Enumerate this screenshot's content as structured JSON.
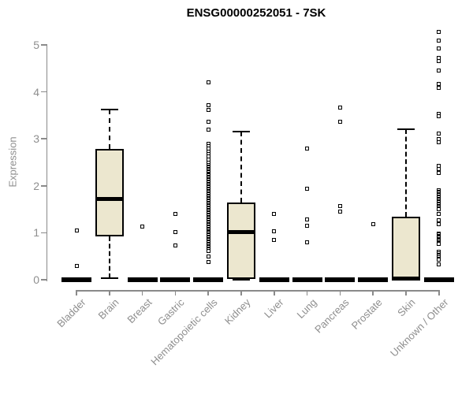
{
  "title": "ENSG00000252051 - 7SK",
  "chart_data": {
    "type": "boxplot",
    "title": "ENSG00000252051 - 7SK",
    "ylabel": "Expression",
    "xlabel": "",
    "ylim": [
      0,
      5.3
    ],
    "yticks": [
      0,
      1,
      2,
      3,
      4,
      5
    ],
    "grid": false,
    "legend": "none",
    "box_fill_color": "#ece7cf",
    "box_line_color": "#000000",
    "axis_color": "#8a8a8a",
    "label_color": "#8e8e8e",
    "categories": [
      "Bladder",
      "Brain",
      "Breast",
      "Gastric",
      "Hematopoietic cells",
      "Kidney",
      "Liver",
      "Lung",
      "Pancreas",
      "Prostate",
      "Skin",
      "Unknown / Other"
    ],
    "boxes": [
      {
        "category": "Bladder",
        "low": 0,
        "q1": 0,
        "median": 0,
        "q3": 0,
        "high": 0,
        "outliers": [
          1.05,
          0.29
        ]
      },
      {
        "category": "Brain",
        "low": 0.03,
        "q1": 0.93,
        "median": 1.72,
        "q3": 2.79,
        "high": 3.62,
        "outliers": []
      },
      {
        "category": "Breast",
        "low": 0,
        "q1": 0,
        "median": 0,
        "q3": 0,
        "high": 0,
        "outliers": [
          1.13
        ]
      },
      {
        "category": "Gastric",
        "low": 0,
        "q1": 0,
        "median": 0,
        "q3": 0,
        "high": 0,
        "outliers": [
          1.4,
          1.01,
          0.73
        ]
      },
      {
        "category": "Hematopoietic cells",
        "low": 0,
        "q1": 0,
        "median": 0,
        "q3": 0,
        "high": 0,
        "outliers": [
          4.2,
          3.71,
          3.62,
          3.37,
          3.2,
          2.9,
          2.84,
          2.79,
          2.73,
          2.68,
          2.62,
          2.56,
          2.5,
          {
            "from": 2.44,
            "to": 0.6,
            "step": 0.025
          },
          0.5,
          0.38
        ]
      },
      {
        "category": "Kidney",
        "low": 0,
        "q1": 0.02,
        "median": 1.01,
        "q3": 1.65,
        "high": 3.15,
        "outliers": []
      },
      {
        "category": "Liver",
        "low": 0,
        "q1": 0,
        "median": 0,
        "q3": 0,
        "high": 0,
        "outliers": [
          1.4,
          1.04,
          0.84
        ]
      },
      {
        "category": "Lung",
        "low": 0,
        "q1": 0,
        "median": 0,
        "q3": 0,
        "high": 0,
        "outliers": [
          2.8,
          1.94,
          1.28,
          1.15,
          0.79
        ]
      },
      {
        "category": "Pancreas",
        "low": 0,
        "q1": 0,
        "median": 0,
        "q3": 0,
        "high": 0,
        "outliers": [
          3.66,
          3.37,
          1.57,
          1.45
        ]
      },
      {
        "category": "Prostate",
        "low": 0,
        "q1": 0,
        "median": 0,
        "q3": 0,
        "high": 0,
        "outliers": [
          1.18
        ]
      },
      {
        "category": "Skin",
        "low": 0,
        "q1": 0,
        "median": 0.03,
        "q3": 1.35,
        "high": 3.2,
        "outliers": []
      },
      {
        "category": "Unknown / Other",
        "low": 0,
        "q1": 0,
        "median": 0,
        "q3": 0,
        "high": 0,
        "outliers": [
          5.27,
          5.1,
          4.92,
          4.72,
          4.66,
          4.45,
          4.17,
          4.08,
          3.54,
          3.48,
          3.12,
          3.0,
          2.93,
          2.42,
          2.35,
          2.28,
          {
            "from": 1.9,
            "to": 1.5,
            "step": 0.025
          },
          1.4,
          1.26,
          1.18,
          {
            "from": 0.98,
            "to": 0.76,
            "step": 0.022
          },
          {
            "from": 0.59,
            "to": 0.42,
            "step": 0.028
          },
          0.32
        ]
      }
    ]
  }
}
